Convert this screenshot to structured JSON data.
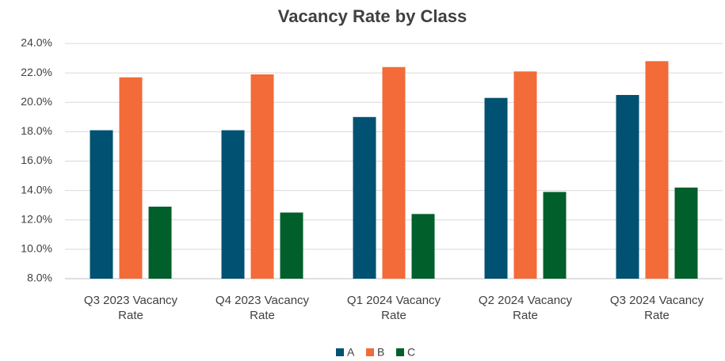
{
  "chart_data": {
    "type": "bar",
    "title": "Vacancy Rate by Class",
    "categories": [
      "Q3 2023 Vacancy Rate",
      "Q4 2023 Vacancy Rate",
      "Q1 2024 Vacancy Rate",
      "Q2 2024 Vacancy Rate",
      "Q3 2024 Vacancy Rate"
    ],
    "series": [
      {
        "name": "A",
        "color": "#005172",
        "values": [
          18.1,
          18.1,
          19.0,
          20.3,
          20.5
        ]
      },
      {
        "name": "B",
        "color": "#f26b38",
        "values": [
          21.7,
          21.9,
          22.4,
          22.1,
          22.8
        ]
      },
      {
        "name": "C",
        "color": "#005f2a",
        "values": [
          12.9,
          12.5,
          12.4,
          13.9,
          14.2
        ]
      }
    ],
    "ylim": [
      8,
      24
    ],
    "yticks": [
      {
        "value": 8,
        "label": "8.0%"
      },
      {
        "value": 10,
        "label": "10.0%"
      },
      {
        "value": 12,
        "label": "12.0%"
      },
      {
        "value": 14,
        "label": "14.0%"
      },
      {
        "value": 16,
        "label": "16.0%"
      },
      {
        "value": 18,
        "label": "18.0%"
      },
      {
        "value": 20,
        "label": "20.0%"
      },
      {
        "value": 22,
        "label": "22.0%"
      },
      {
        "value": 24,
        "label": "24.0%"
      }
    ],
    "grid": true,
    "legend": "bottom"
  }
}
